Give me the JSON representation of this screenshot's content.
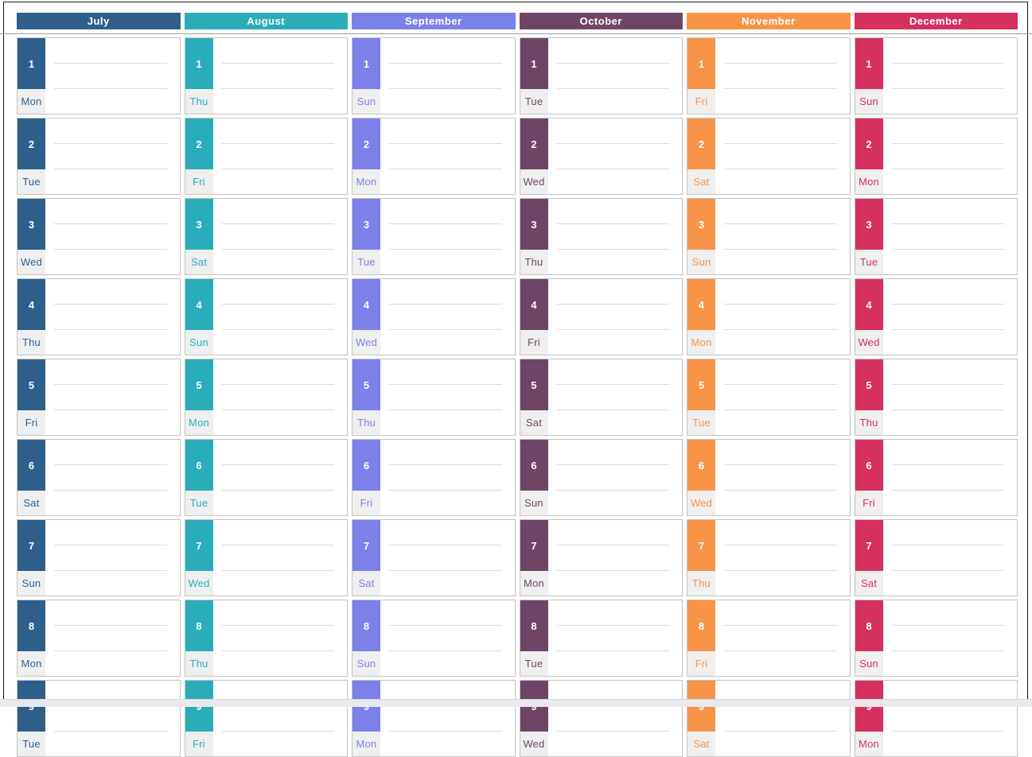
{
  "calendar": {
    "months": [
      {
        "name": "July",
        "color": "#2e5f8b",
        "days": [
          {
            "n": "1",
            "dow": "Mon"
          },
          {
            "n": "2",
            "dow": "Tue"
          },
          {
            "n": "3",
            "dow": "Wed"
          },
          {
            "n": "4",
            "dow": "Thu"
          },
          {
            "n": "5",
            "dow": "Fri"
          },
          {
            "n": "6",
            "dow": "Sat"
          },
          {
            "n": "7",
            "dow": "Sun"
          },
          {
            "n": "8",
            "dow": "Mon"
          },
          {
            "n": "9",
            "dow": "Tue"
          }
        ]
      },
      {
        "name": "August",
        "color": "#2badb9",
        "days": [
          {
            "n": "1",
            "dow": "Thu"
          },
          {
            "n": "2",
            "dow": "Fri"
          },
          {
            "n": "3",
            "dow": "Sat"
          },
          {
            "n": "4",
            "dow": "Sun"
          },
          {
            "n": "5",
            "dow": "Mon"
          },
          {
            "n": "6",
            "dow": "Tue"
          },
          {
            "n": "7",
            "dow": "Wed"
          },
          {
            "n": "8",
            "dow": "Thu"
          },
          {
            "n": "9",
            "dow": "Fri"
          }
        ]
      },
      {
        "name": "September",
        "color": "#7c80e9",
        "days": [
          {
            "n": "1",
            "dow": "Sun"
          },
          {
            "n": "2",
            "dow": "Mon"
          },
          {
            "n": "3",
            "dow": "Tue"
          },
          {
            "n": "4",
            "dow": "Wed"
          },
          {
            "n": "5",
            "dow": "Thu"
          },
          {
            "n": "6",
            "dow": "Fri"
          },
          {
            "n": "7",
            "dow": "Sat"
          },
          {
            "n": "8",
            "dow": "Sun"
          },
          {
            "n": "9",
            "dow": "Mon"
          }
        ]
      },
      {
        "name": "October",
        "color": "#6f4566",
        "days": [
          {
            "n": "1",
            "dow": "Tue"
          },
          {
            "n": "2",
            "dow": "Wed"
          },
          {
            "n": "3",
            "dow": "Thu"
          },
          {
            "n": "4",
            "dow": "Fri"
          },
          {
            "n": "5",
            "dow": "Sat"
          },
          {
            "n": "6",
            "dow": "Sun"
          },
          {
            "n": "7",
            "dow": "Mon"
          },
          {
            "n": "8",
            "dow": "Tue"
          },
          {
            "n": "9",
            "dow": "Wed"
          }
        ]
      },
      {
        "name": "November",
        "color": "#f79447",
        "days": [
          {
            "n": "1",
            "dow": "Fri"
          },
          {
            "n": "2",
            "dow": "Sat"
          },
          {
            "n": "3",
            "dow": "Sun"
          },
          {
            "n": "4",
            "dow": "Mon"
          },
          {
            "n": "5",
            "dow": "Tue"
          },
          {
            "n": "6",
            "dow": "Wed"
          },
          {
            "n": "7",
            "dow": "Thu"
          },
          {
            "n": "8",
            "dow": "Fri"
          },
          {
            "n": "9",
            "dow": "Sat"
          }
        ]
      },
      {
        "name": "December",
        "color": "#d6305f",
        "days": [
          {
            "n": "1",
            "dow": "Sun"
          },
          {
            "n": "2",
            "dow": "Mon"
          },
          {
            "n": "3",
            "dow": "Tue"
          },
          {
            "n": "4",
            "dow": "Wed"
          },
          {
            "n": "5",
            "dow": "Thu"
          },
          {
            "n": "6",
            "dow": "Fri"
          },
          {
            "n": "7",
            "dow": "Sat"
          },
          {
            "n": "8",
            "dow": "Sun"
          },
          {
            "n": "9",
            "dow": "Mon"
          }
        ]
      }
    ]
  }
}
